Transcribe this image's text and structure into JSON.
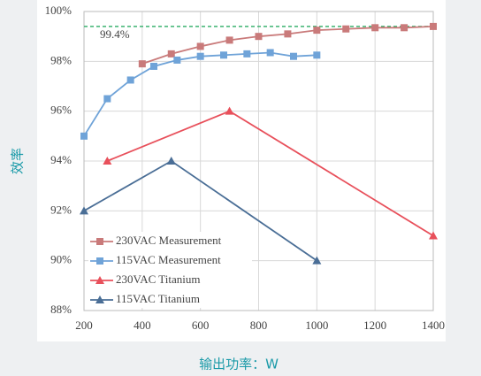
{
  "chart_data": {
    "type": "line",
    "y_label": "效率",
    "x_label": "输出功率：W",
    "xlim": [
      200,
      1400
    ],
    "xticks": [
      200,
      400,
      600,
      800,
      1000,
      1200,
      1400
    ],
    "ylim": [
      88,
      100
    ],
    "yticks": [
      {
        "value": 88,
        "label": "88%"
      },
      {
        "value": 90,
        "label": "90%"
      },
      {
        "value": 92,
        "label": "92%"
      },
      {
        "value": 94,
        "label": "94%"
      },
      {
        "value": 96,
        "label": "96%"
      },
      {
        "value": 98,
        "label": "98%"
      },
      {
        "value": 100,
        "label": "100%"
      }
    ],
    "grid": true,
    "legend": "lower left",
    "reference_line": {
      "value": 99.4,
      "label": "99.4%",
      "color": "#3cb371"
    },
    "series": [
      {
        "name": "230VAC Measurement",
        "color": "#c97a7a",
        "marker": "square",
        "x": [
          400,
          500,
          600,
          700,
          800,
          900,
          1000,
          1100,
          1200,
          1300,
          1400
        ],
        "values": [
          97.9,
          98.3,
          98.6,
          98.85,
          99.0,
          99.1,
          99.25,
          99.3,
          99.35,
          99.35,
          99.4
        ]
      },
      {
        "name": "115VAC Measurement",
        "color": "#6fa3d8",
        "marker": "square",
        "x": [
          200,
          280,
          360,
          440,
          520,
          600,
          680,
          760,
          840,
          920,
          1000
        ],
        "values": [
          95.0,
          96.5,
          97.25,
          97.8,
          98.05,
          98.2,
          98.25,
          98.3,
          98.35,
          98.2,
          98.25
        ]
      },
      {
        "name": "230VAC Titanium",
        "color": "#e8505b",
        "marker": "triangle",
        "x": [
          280,
          700,
          1400
        ],
        "values": [
          94,
          96,
          91
        ]
      },
      {
        "name": "115VAC Titanium",
        "color": "#4a6e96",
        "marker": "triangle",
        "x": [
          200,
          500,
          1000
        ],
        "values": [
          92,
          94,
          90
        ]
      }
    ]
  }
}
